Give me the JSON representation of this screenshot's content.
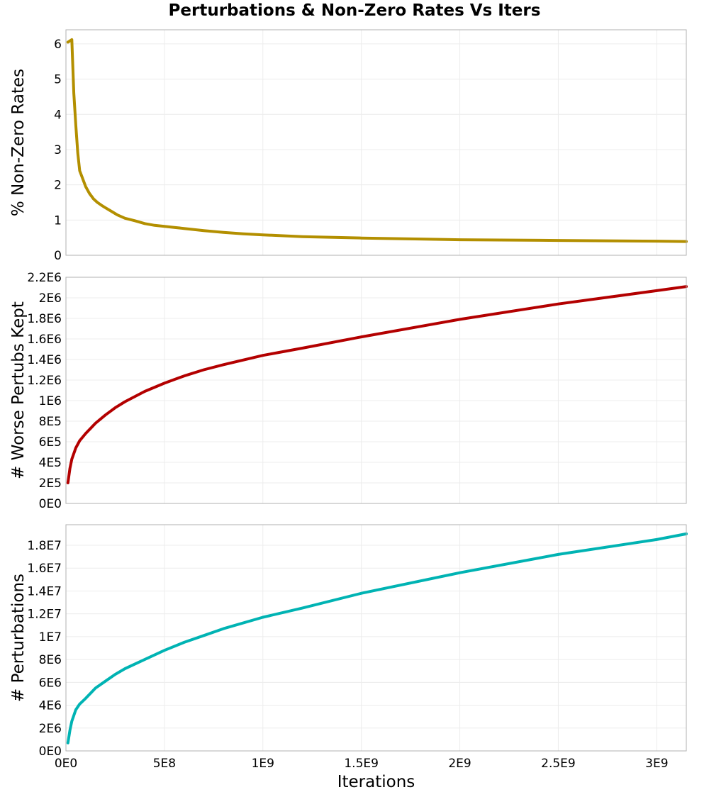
{
  "title": "Perturbations & Non-Zero Rates Vs Iters",
  "chart_data": {
    "type": "line",
    "shared_x": {
      "label": "Iterations",
      "range": [
        0,
        3150000000
      ],
      "ticks": [
        0,
        500000000,
        1000000000,
        1500000000,
        2000000000,
        2500000000,
        3000000000
      ],
      "tick_labels": [
        "0E0",
        "5E8",
        "1E9",
        "1.5E9",
        "2E9",
        "2.5E9",
        "3E9"
      ]
    },
    "grid": true,
    "subplots": [
      {
        "ylabel": "% Non-Zero Rates",
        "ylim": [
          0,
          6.4
        ],
        "yticks": [
          0,
          1,
          2,
          3,
          4,
          5,
          6
        ],
        "ytick_labels": [
          "0",
          "1",
          "2",
          "3",
          "4",
          "5",
          "6"
        ],
        "color": "#b38f00",
        "series": [
          {
            "x": [
              10000000,
              30000000,
              40000000,
              50000000,
              60000000,
              70000000,
              80000000,
              100000000,
              120000000,
              140000000,
              160000000,
              180000000,
              200000000,
              230000000,
              260000000,
              300000000,
              350000000,
              400000000,
              450000000,
              500000000,
              550000000,
              600000000,
              700000000,
              800000000,
              900000000,
              1000000000,
              1200000000,
              1500000000,
              1800000000,
              2000000000,
              2500000000,
              3000000000,
              3150000000
            ],
            "y": [
              6.05,
              6.12,
              4.6,
              3.7,
              2.9,
              2.4,
              2.25,
              1.95,
              1.75,
              1.6,
              1.5,
              1.42,
              1.35,
              1.25,
              1.15,
              1.05,
              0.98,
              0.9,
              0.85,
              0.82,
              0.79,
              0.76,
              0.7,
              0.65,
              0.61,
              0.58,
              0.53,
              0.49,
              0.46,
              0.44,
              0.42,
              0.4,
              0.39
            ]
          }
        ]
      },
      {
        "ylabel": "# Worse Pertubs Kept",
        "ylim": [
          0,
          2200000
        ],
        "yticks": [
          0,
          200000,
          400000,
          600000,
          800000,
          1000000,
          1200000,
          1400000,
          1600000,
          1800000,
          2000000,
          2200000
        ],
        "ytick_labels": [
          "0E0",
          "2E5",
          "4E5",
          "6E5",
          "8E5",
          "1E6",
          "1.2E6",
          "1.4E6",
          "1.6E6",
          "1.8E6",
          "2E6",
          "2.2E6"
        ],
        "color": "#b30000",
        "series": [
          {
            "x": [
              10000000,
              20000000,
              30000000,
              50000000,
              70000000,
              100000000,
              150000000,
              200000000,
              250000000,
              300000000,
              400000000,
              500000000,
              600000000,
              700000000,
              800000000,
              1000000000,
              1200000000,
              1500000000,
              2000000000,
              2500000000,
              3000000000,
              3150000000
            ],
            "y": [
              200000,
              340000,
              430000,
              540000,
              610000,
              680000,
              780000,
              860000,
              930000,
              990000,
              1090000,
              1170000,
              1240000,
              1300000,
              1350000,
              1440000,
              1510000,
              1620000,
              1790000,
              1940000,
              2070000,
              2110000
            ]
          }
        ]
      },
      {
        "ylabel": "# Perturbations",
        "ylim": [
          0,
          19800000
        ],
        "yticks": [
          0,
          2000000,
          4000000,
          6000000,
          8000000,
          10000000,
          12000000,
          14000000,
          16000000,
          18000000
        ],
        "ytick_labels": [
          "0E0",
          "2E6",
          "4E6",
          "6E6",
          "8E6",
          "1E7",
          "1.2E7",
          "1.4E7",
          "1.6E7",
          "1.8E7"
        ],
        "color": "#00b3b3",
        "series": [
          {
            "x": [
              10000000,
              20000000,
              30000000,
              50000000,
              70000000,
              100000000,
              150000000,
              200000000,
              250000000,
              300000000,
              400000000,
              500000000,
              600000000,
              700000000,
              800000000,
              1000000000,
              1200000000,
              1500000000,
              2000000000,
              2500000000,
              3000000000,
              3150000000
            ],
            "y": [
              700000,
              1800000,
              2600000,
              3600000,
              4100000,
              4600000,
              5500000,
              6100000,
              6700000,
              7200000,
              8000000,
              8800000,
              9500000,
              10100000,
              10700000,
              11700000,
              12500000,
              13800000,
              15600000,
              17200000,
              18500000,
              19000000
            ]
          }
        ]
      }
    ]
  }
}
